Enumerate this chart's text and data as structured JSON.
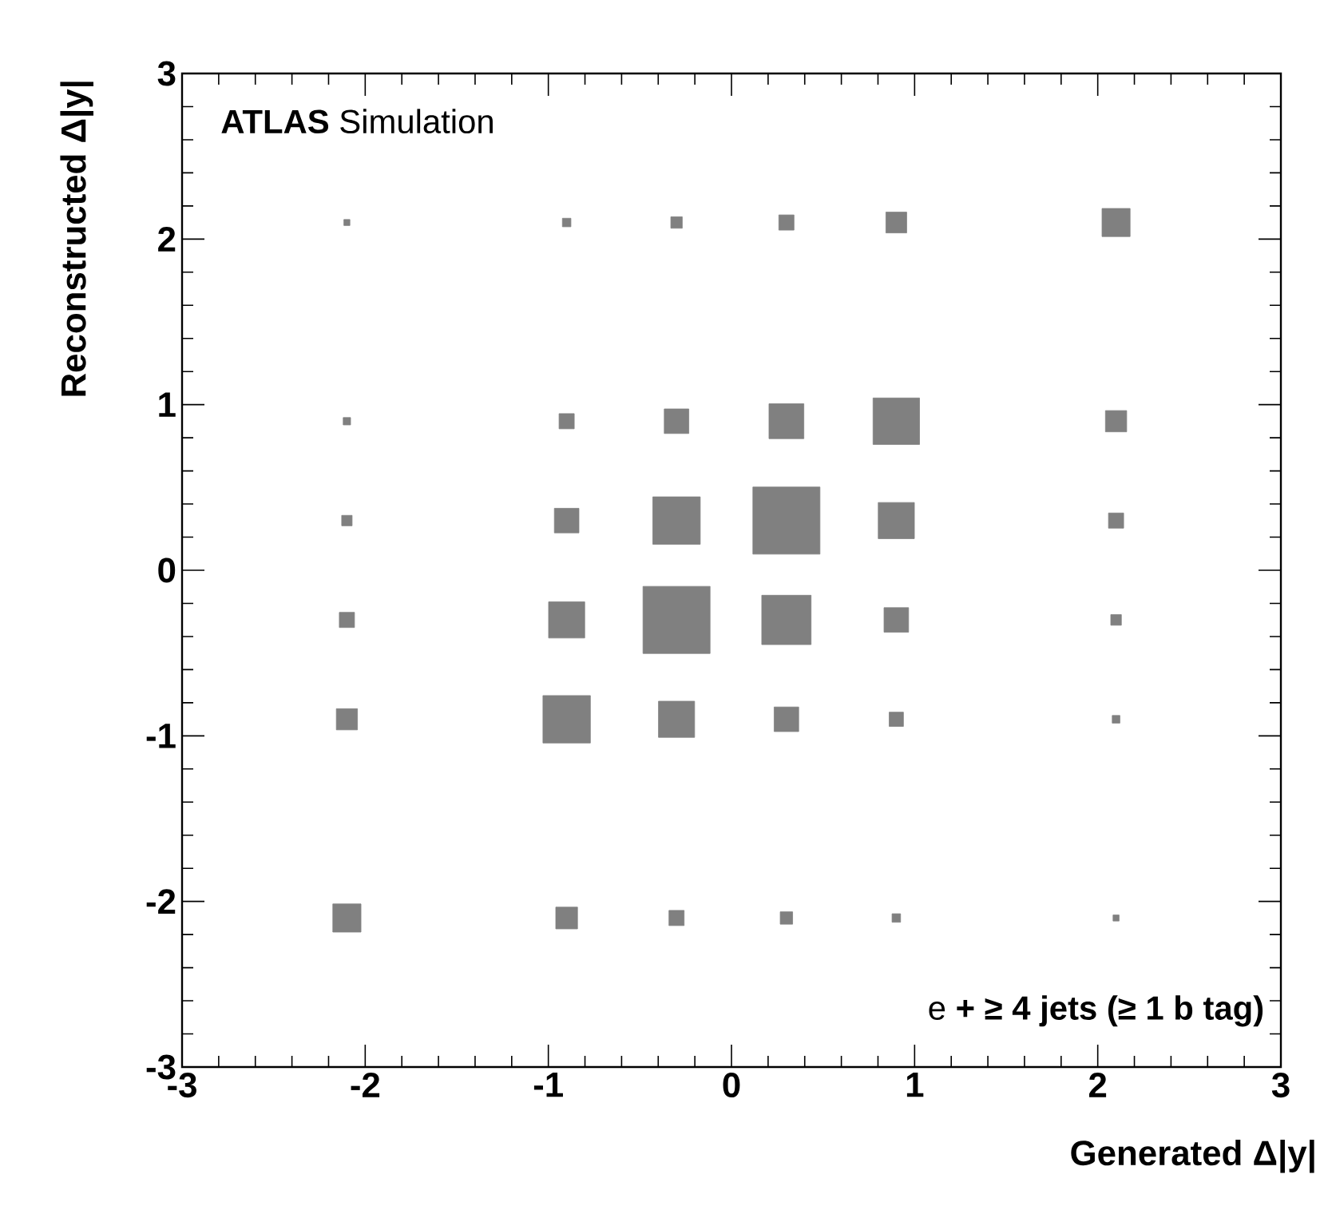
{
  "chart_data": {
    "type": "bubble",
    "xlabel": "Generated Δ|y|",
    "ylabel": "Reconstructed Δ|y|",
    "annotations": [
      "**ATLAS** Simulation",
      "e **+ ≥ 4 jets (≥ 1 b tag)**"
    ],
    "x": [
      -2.1,
      -0.9,
      -0.3,
      0.3,
      0.9,
      2.1,
      -2.1,
      -0.9,
      -0.3,
      0.3,
      0.9,
      2.1,
      -2.1,
      -0.9,
      -0.3,
      0.3,
      0.9,
      2.1,
      -2.1,
      -0.9,
      -0.3,
      0.3,
      0.9,
      2.1,
      -2.1,
      -0.9,
      -0.3,
      0.3,
      0.9,
      2.1,
      -2.1,
      -0.9,
      -0.3,
      0.3,
      0.9,
      2.1
    ],
    "values": [
      2.1,
      2.1,
      2.1,
      2.1,
      2.1,
      2.1,
      0.9,
      0.9,
      0.9,
      0.9,
      0.9,
      0.9,
      0.3,
      0.3,
      0.3,
      0.3,
      0.3,
      0.3,
      -0.3,
      -0.3,
      -0.3,
      -0.3,
      -0.3,
      -0.3,
      -0.9,
      -0.9,
      -0.9,
      -0.9,
      -0.9,
      -0.9,
      -2.1,
      -2.1,
      -2.1,
      -2.1,
      -2.1,
      -2.1
    ],
    "sizes": [
      0.008,
      0.016,
      0.029,
      0.051,
      0.096,
      0.175,
      0.012,
      0.051,
      0.134,
      0.27,
      0.48,
      0.1,
      0.024,
      0.134,
      0.5,
      1.0,
      0.29,
      0.051,
      0.051,
      0.29,
      1.0,
      0.54,
      0.134,
      0.025,
      0.099,
      0.5,
      0.29,
      0.134,
      0.045,
      0.013,
      0.176,
      0.105,
      0.051,
      0.034,
      0.016,
      0.008
    ],
    "color": "#808080",
    "marker": "square",
    "xlim": [
      -3,
      3
    ],
    "ylim": [
      -3,
      3
    ],
    "xticks": [
      -3,
      -2,
      -1,
      0,
      1,
      2,
      3
    ],
    "yticks": [
      -3,
      -2,
      -1,
      0,
      1,
      2,
      3
    ]
  }
}
